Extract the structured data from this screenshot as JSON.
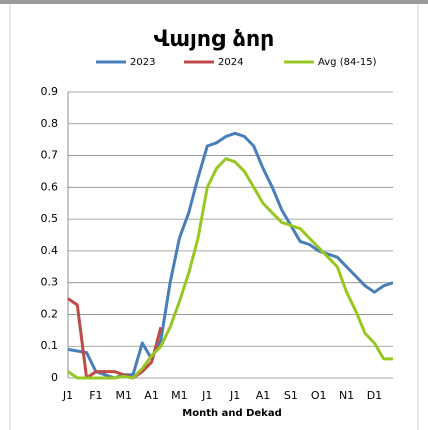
{
  "chart_data": {
    "type": "line",
    "title": "Վայոց ձոր",
    "x_label": "Month and Dekad",
    "categories": [
      "J1",
      null,
      null,
      "F1",
      null,
      null,
      "M1",
      null,
      null,
      "A1",
      null,
      null,
      "M1",
      null,
      null,
      "J1",
      null,
      null,
      "J1",
      null,
      null,
      "A1",
      null,
      null,
      "S1",
      null,
      null,
      "O1",
      null,
      null,
      "N1",
      null,
      null,
      "D1",
      null,
      null
    ],
    "series": [
      {
        "name": "2023",
        "color": "#4a7ebb",
        "values": [
          0.09,
          0.085,
          0.08,
          0.02,
          0.01,
          0.0,
          0.01,
          0.01,
          0.11,
          0.06,
          0.12,
          0.3,
          0.44,
          0.52,
          0.63,
          0.73,
          0.74,
          0.76,
          0.77,
          0.76,
          0.73,
          0.66,
          0.6,
          0.53,
          0.48,
          0.43,
          0.42,
          0.4,
          0.39,
          0.38,
          0.35,
          0.32,
          0.29,
          0.27,
          0.29,
          0.3
        ]
      },
      {
        "name": "2024",
        "color": "#be4b48",
        "values": [
          0.25,
          0.23,
          0.0,
          0.02,
          0.02,
          0.02,
          0.01,
          0.0,
          0.02,
          0.05,
          0.16,
          null,
          null,
          null,
          null,
          null,
          null,
          null,
          null,
          null,
          null,
          null,
          null,
          null,
          null,
          null,
          null,
          null,
          null,
          null,
          null,
          null,
          null,
          null,
          null,
          null
        ]
      },
      {
        "name": "Avg (84-15)",
        "color": "#98c723",
        "values": [
          0.02,
          0.0,
          0.0,
          0.0,
          0.0,
          0.0,
          0.005,
          0.0,
          0.03,
          0.07,
          0.1,
          0.16,
          0.24,
          0.33,
          0.44,
          0.6,
          0.66,
          0.69,
          0.68,
          0.65,
          0.6,
          0.55,
          0.52,
          0.49,
          0.48,
          0.47,
          0.44,
          0.41,
          0.38,
          0.35,
          0.27,
          0.21,
          0.14,
          0.11,
          0.06,
          0.06
        ]
      }
    ],
    "ylim": [
      0,
      0.9
    ],
    "yticks": [
      0,
      0.1,
      0.2,
      0.3,
      0.4,
      0.5,
      0.6,
      0.7,
      0.8,
      0.9
    ],
    "grid": true
  }
}
